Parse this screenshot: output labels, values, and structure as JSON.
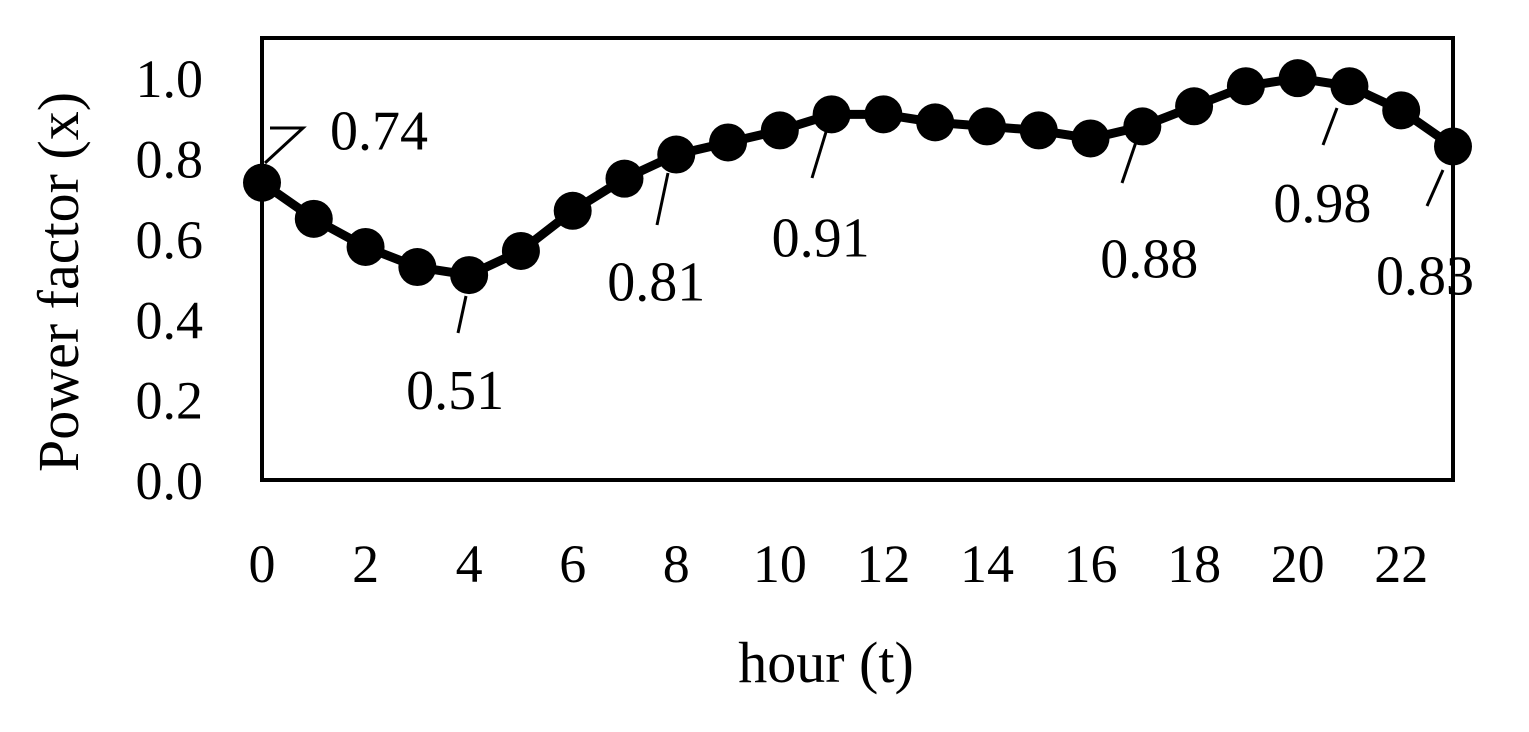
{
  "chart_data": {
    "type": "line",
    "title": "",
    "xlabel": "hour (t)",
    "ylabel": "Power factor (x)",
    "x": [
      0,
      1,
      2,
      3,
      4,
      5,
      6,
      7,
      8,
      9,
      10,
      11,
      12,
      13,
      14,
      15,
      16,
      17,
      18,
      19,
      20,
      21,
      22,
      23
    ],
    "xticks": [
      0,
      2,
      4,
      6,
      8,
      10,
      12,
      14,
      16,
      18,
      20,
      22
    ],
    "xtick_labels": [
      "0",
      "2",
      "4",
      "6",
      "8",
      "10",
      "12",
      "14",
      "16",
      "18",
      "20",
      "22"
    ],
    "xlim": [
      0,
      23
    ],
    "ylim": [
      0.0,
      1.1
    ],
    "yticks": [
      0.0,
      0.2,
      0.4,
      0.6,
      0.8,
      1.0
    ],
    "ytick_labels": [
      "0.0",
      "0.2",
      "0.4",
      "0.6",
      "0.8",
      "1.0"
    ],
    "grid": false,
    "series": [
      {
        "color": "#000000",
        "marker": "circle",
        "values": [
          0.74,
          0.65,
          0.58,
          0.53,
          0.51,
          0.57,
          0.67,
          0.75,
          0.81,
          0.84,
          0.87,
          0.91,
          0.91,
          0.89,
          0.88,
          0.87,
          0.85,
          0.88,
          0.93,
          0.98,
          1.0,
          0.98,
          0.92,
          0.83
        ]
      }
    ],
    "data_labels": [
      {
        "x": 0,
        "text": "0.74"
      },
      {
        "x": 4,
        "text": "0.51"
      },
      {
        "x": 8,
        "text": "0.81"
      },
      {
        "x": 11,
        "text": "0.91"
      },
      {
        "x": 17,
        "text": "0.88"
      },
      {
        "x": 21,
        "text": "0.98"
      },
      {
        "x": 23,
        "text": "0.83"
      }
    ]
  }
}
